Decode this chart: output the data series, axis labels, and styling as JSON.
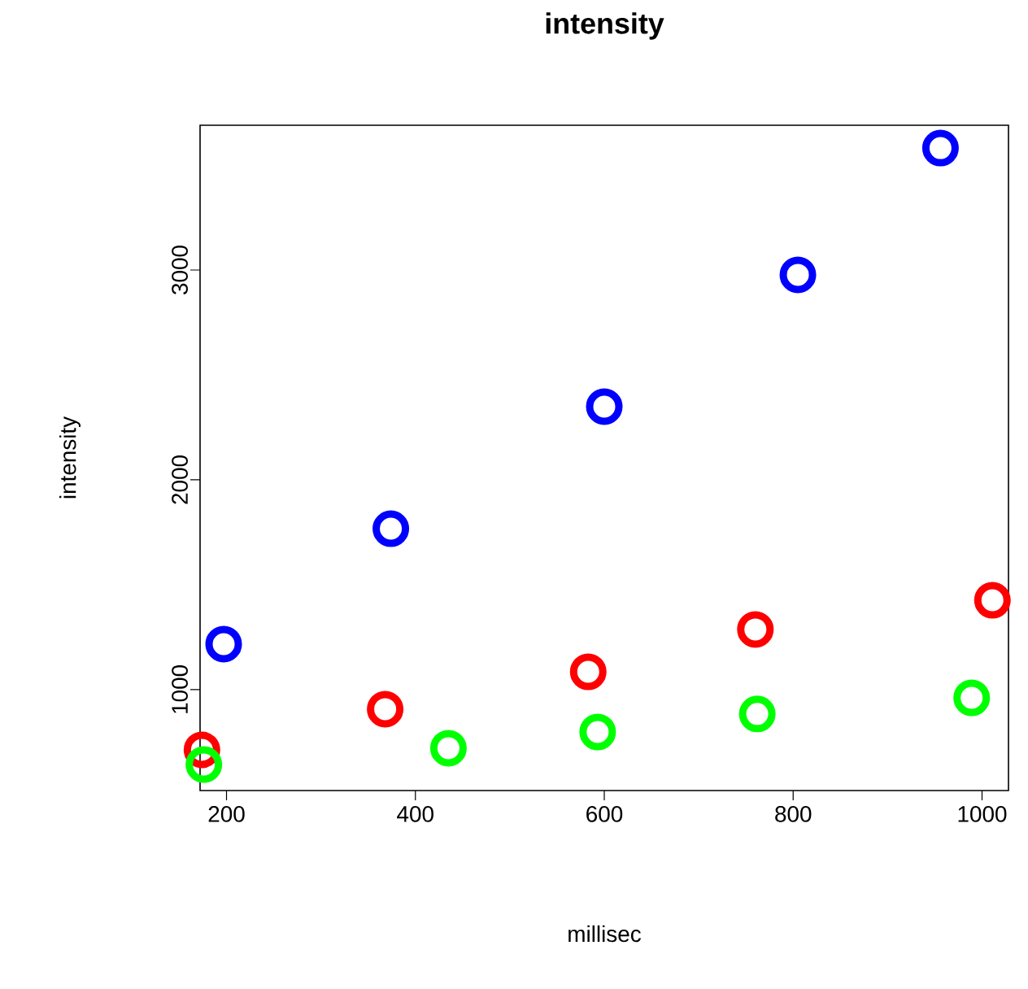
{
  "chart_data": {
    "type": "scatter",
    "title": "intensity",
    "xlabel": "millisec",
    "ylabel": "intensity",
    "xlim": [
      172,
      1028
    ],
    "ylim": [
      519,
      3690
    ],
    "xticks": [
      200,
      400,
      600,
      800,
      1000
    ],
    "yticks": [
      1000,
      2000,
      3000
    ],
    "marker": "circle",
    "series": [
      {
        "color": "#0000ff",
        "x": [
          197,
          374,
          600,
          805,
          956
        ],
        "values": [
          1217,
          1767,
          2349,
          2977,
          3581
        ]
      },
      {
        "color": "#ff0000",
        "x": [
          174,
          368,
          583,
          760,
          1011
        ],
        "values": [
          713,
          907,
          1085,
          1287,
          1426
        ]
      },
      {
        "color": "#00ff00",
        "x": [
          176,
          435,
          593,
          762,
          989
        ],
        "values": [
          643,
          721,
          798,
          884,
          961
        ]
      }
    ]
  }
}
